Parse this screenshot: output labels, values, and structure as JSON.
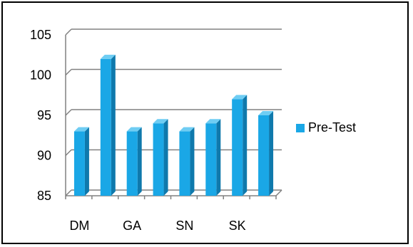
{
  "chart_data": {
    "type": "bar",
    "title": "",
    "xlabel": "",
    "ylabel": "",
    "categories": [
      "DM",
      "",
      "GA",
      "",
      "SN",
      "",
      "SK",
      ""
    ],
    "series": [
      {
        "name": "Pre-Test",
        "values": [
          93,
          102,
          93,
          94,
          93,
          94,
          97,
          95
        ]
      }
    ],
    "ylim": [
      85,
      105
    ],
    "yticks": [
      "85",
      "90",
      "95",
      "100",
      "105"
    ],
    "xtick_labels": [
      "DM",
      "GA",
      "SN",
      "SK"
    ],
    "grid": true,
    "legend_position": "right",
    "three_d": true,
    "colors": {
      "bar_front": "#1aa7e6",
      "bar_side": "#0f79ac",
      "bar_top": "#6fcdf3",
      "grid": "#808080"
    }
  }
}
